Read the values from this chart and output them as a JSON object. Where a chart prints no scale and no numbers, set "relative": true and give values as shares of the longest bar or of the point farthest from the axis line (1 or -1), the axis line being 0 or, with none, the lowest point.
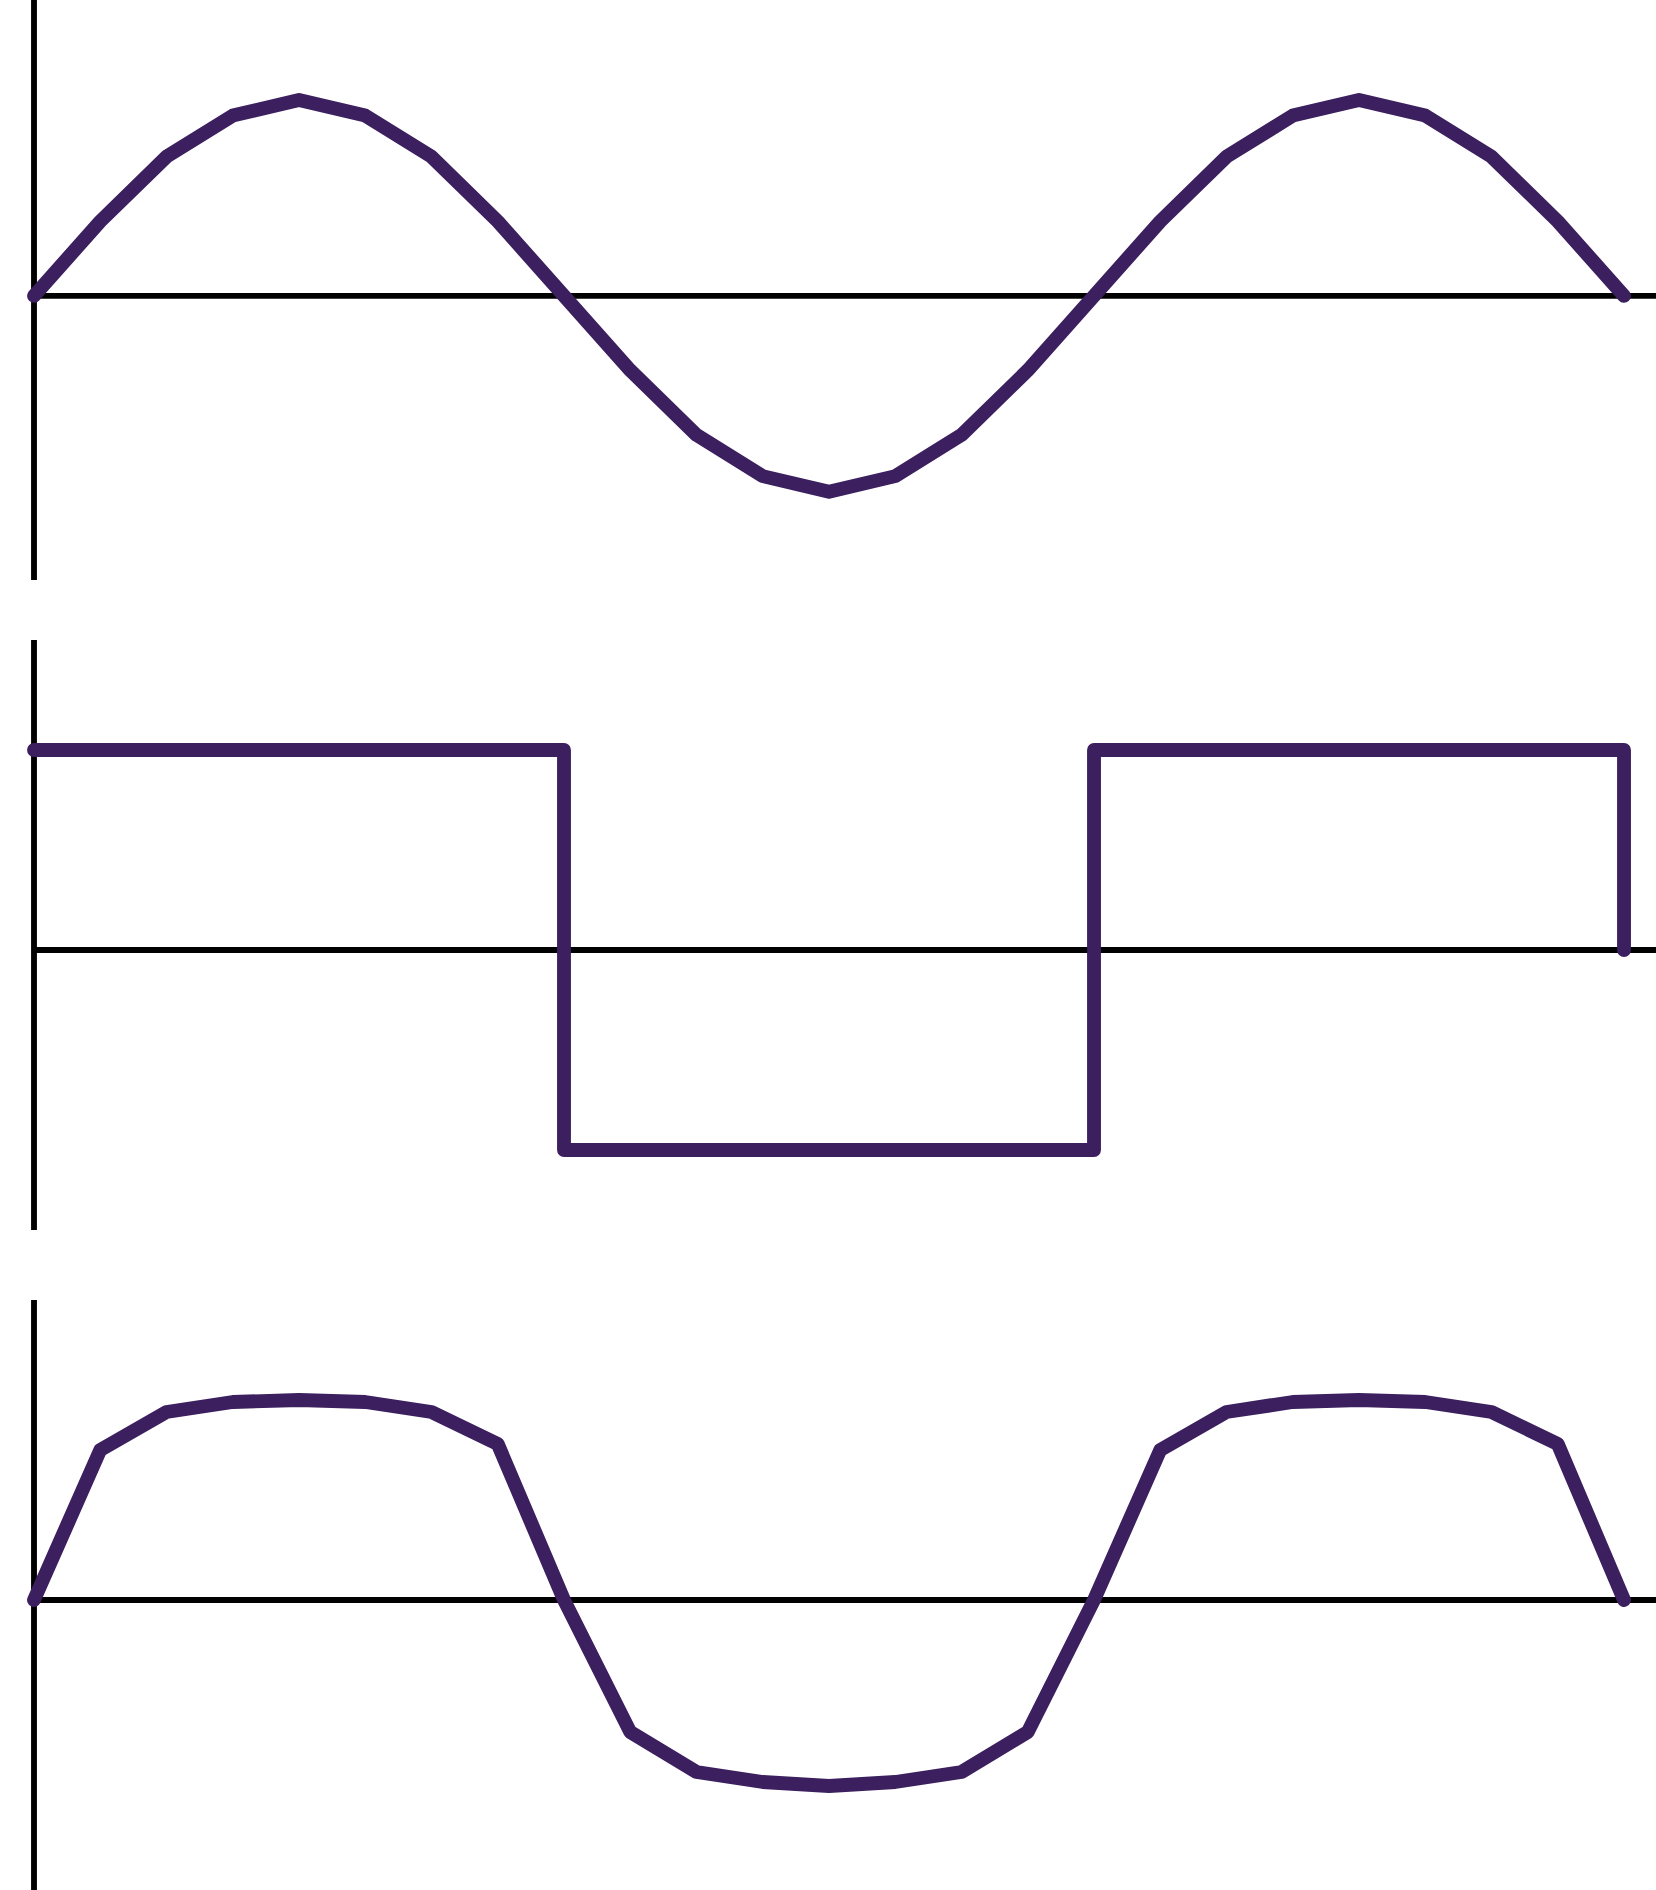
{
  "chart_data": [
    {
      "type": "line",
      "relative": true,
      "color": "#3b1f5e",
      "categories": [
        null,
        null,
        null,
        null,
        null,
        null,
        null,
        null,
        null,
        null,
        null,
        null,
        null,
        null,
        null,
        null,
        null,
        null,
        null,
        null,
        null,
        null,
        null,
        null,
        null
      ],
      "values": [
        0,
        0.38,
        0.71,
        0.92,
        1,
        0.92,
        0.71,
        0.38,
        0,
        -0.38,
        -0.71,
        -0.92,
        -1,
        -0.92,
        -0.71,
        -0.38,
        0,
        0.38,
        0.71,
        0.92,
        1,
        0.92,
        0.71,
        0.38,
        0
      ]
    },
    {
      "type": "step",
      "relative": true,
      "color": "#3b1f5e",
      "categories": [
        null,
        null,
        null,
        null,
        null,
        null,
        null,
        null,
        null,
        null,
        null,
        null,
        null,
        null,
        null,
        null,
        null,
        null,
        null,
        null,
        null,
        null,
        null,
        null,
        null
      ],
      "values": [
        1,
        1,
        1,
        1,
        1,
        1,
        1,
        1,
        -1,
        -1,
        -1,
        -1,
        -1,
        -1,
        -1,
        -1,
        1,
        1,
        1,
        1,
        1,
        1,
        1,
        1,
        0
      ]
    },
    {
      "type": "line",
      "relative": true,
      "color": "#3b1f5e",
      "categories": [
        null,
        null,
        null,
        null,
        null,
        null,
        null,
        null,
        null,
        null,
        null,
        null,
        null,
        null,
        null,
        null,
        null,
        null,
        null,
        null,
        null,
        null,
        null,
        null,
        null
      ],
      "values": [
        0,
        0.75,
        0.94,
        0.99,
        1,
        0.99,
        0.94,
        0.78,
        0,
        -0.66,
        -0.86,
        -0.91,
        -0.93,
        -0.91,
        -0.86,
        -0.66,
        0,
        0.75,
        0.94,
        0.99,
        1,
        0.99,
        0.94,
        0.78,
        0
      ]
    }
  ]
}
